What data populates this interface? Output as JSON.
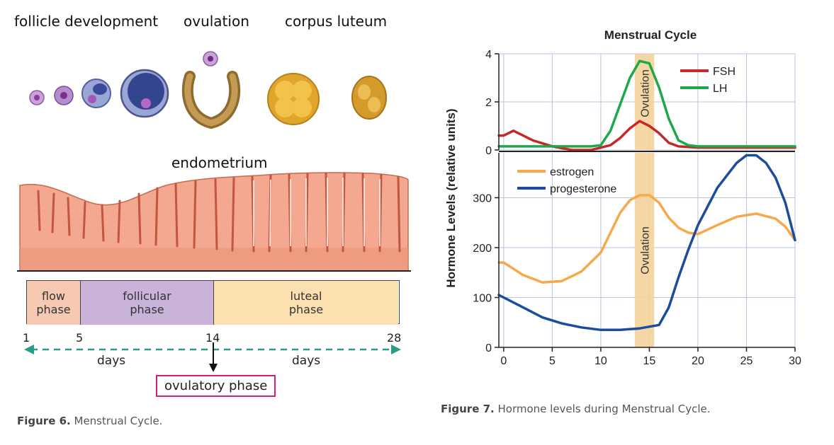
{
  "figure6": {
    "stage_labels": [
      "follicle development",
      "ovulation",
      "corpus luteum"
    ],
    "endometrium_label": "endometrium",
    "phases": [
      {
        "label": "flow\nphase",
        "color": "#f7c9b3",
        "start_day": 1,
        "end_day": 5
      },
      {
        "label": "follicular\nphase",
        "color": "#c9b3d9",
        "start_day": 5,
        "end_day": 14
      },
      {
        "label": "luteal\nphase",
        "color": "#fde0b0",
        "start_day": 14,
        "end_day": 28
      }
    ],
    "day_ticks": [
      "1",
      "5",
      "14",
      "28"
    ],
    "days_label_left": "days",
    "days_label_right": "days",
    "ovulatory_phase": "ovulatory phase",
    "caption_prefix": "Figure 6.",
    "caption_text": " Menstrual Cycle."
  },
  "figure7": {
    "caption_prefix": "Figure 7.",
    "caption_text": " Hormone levels during Menstrual Cycle."
  },
  "chart_data": {
    "type": "line",
    "title": "Menstrual Cycle",
    "ylabel": "Hormone Levels (relative units)",
    "xlabel": "",
    "xlim": [
      -0.5,
      30
    ],
    "x_ticks": [
      0,
      5,
      10,
      15,
      20,
      25,
      30
    ],
    "ovulation_band": [
      13.5,
      15.5
    ],
    "ovulation_label": "Ovulation",
    "grid": true,
    "panels": [
      {
        "ylim": [
          0,
          4
        ],
        "y_ticks": [
          0,
          2,
          4
        ],
        "legend_position": "top-right",
        "series": [
          {
            "name": "FSH",
            "color": "#c62828",
            "points": [
              [
                -0.5,
                0.6
              ],
              [
                0,
                0.6
              ],
              [
                1,
                0.8
              ],
              [
                2,
                0.6
              ],
              [
                3,
                0.4
              ],
              [
                5,
                0.15
              ],
              [
                7,
                0.0
              ],
              [
                9,
                0.0
              ],
              [
                11,
                0.2
              ],
              [
                12,
                0.5
              ],
              [
                13,
                0.9
              ],
              [
                14,
                1.2
              ],
              [
                15,
                1.0
              ],
              [
                16,
                0.7
              ],
              [
                17,
                0.3
              ],
              [
                18,
                0.15
              ],
              [
                20,
                0.1
              ],
              [
                25,
                0.1
              ],
              [
                30,
                0.1
              ]
            ]
          },
          {
            "name": "LH",
            "color": "#1fa84a",
            "points": [
              [
                -0.5,
                0.15
              ],
              [
                0,
                0.15
              ],
              [
                5,
                0.15
              ],
              [
                9,
                0.15
              ],
              [
                10,
                0.2
              ],
              [
                11,
                0.8
              ],
              [
                12,
                1.9
              ],
              [
                13,
                3.0
              ],
              [
                14,
                3.7
              ],
              [
                15,
                3.6
              ],
              [
                16,
                2.6
              ],
              [
                17,
                1.3
              ],
              [
                18,
                0.4
              ],
              [
                19,
                0.2
              ],
              [
                20,
                0.15
              ],
              [
                25,
                0.15
              ],
              [
                30,
                0.15
              ]
            ]
          }
        ]
      },
      {
        "ylim": [
          0,
          390
        ],
        "y_ticks": [
          0,
          100,
          200,
          300
        ],
        "legend_position": "top-left",
        "series": [
          {
            "name": "estrogen",
            "color": "#f7a84a",
            "points": [
              [
                -0.5,
                170
              ],
              [
                0,
                170
              ],
              [
                2,
                145
              ],
              [
                4,
                130
              ],
              [
                6,
                133
              ],
              [
                8,
                152
              ],
              [
                10,
                190
              ],
              [
                12,
                270
              ],
              [
                13,
                295
              ],
              [
                14,
                305
              ],
              [
                15,
                305
              ],
              [
                16,
                290
              ],
              [
                17,
                260
              ],
              [
                18,
                240
              ],
              [
                19,
                230
              ],
              [
                20,
                227
              ],
              [
                22,
                245
              ],
              [
                24,
                262
              ],
              [
                26,
                268
              ],
              [
                28,
                258
              ],
              [
                29,
                242
              ],
              [
                30,
                215
              ]
            ]
          },
          {
            "name": "progesterone",
            "color": "#1c4c9c",
            "points": [
              [
                -0.5,
                105
              ],
              [
                0,
                100
              ],
              [
                2,
                80
              ],
              [
                4,
                60
              ],
              [
                6,
                48
              ],
              [
                8,
                40
              ],
              [
                10,
                35
              ],
              [
                12,
                35
              ],
              [
                14,
                38
              ],
              [
                16,
                45
              ],
              [
                17,
                80
              ],
              [
                18,
                140
              ],
              [
                19,
                195
              ],
              [
                20,
                245
              ],
              [
                22,
                320
              ],
              [
                24,
                370
              ],
              [
                25,
                385
              ],
              [
                26,
                385
              ],
              [
                27,
                370
              ],
              [
                28,
                340
              ],
              [
                29,
                290
              ],
              [
                30,
                215
              ]
            ]
          }
        ]
      }
    ]
  }
}
